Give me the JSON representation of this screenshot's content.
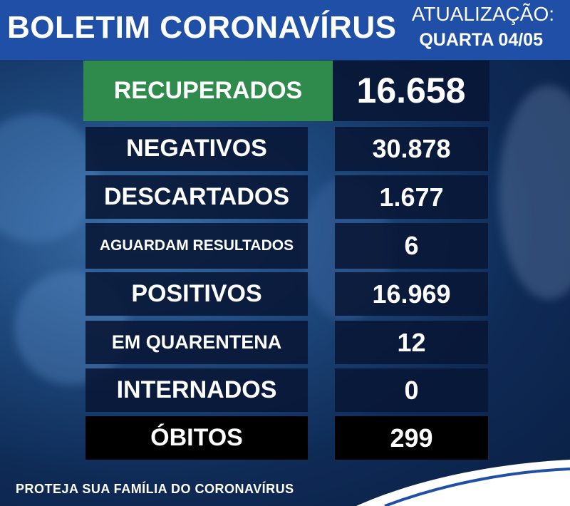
{
  "header": {
    "title": "BOLETIM CORONAVÍRUS",
    "update_label": "ATUALIZAÇÃO:",
    "update_date": "QUARTA 04/05"
  },
  "rows": [
    {
      "label": "RECUPERADOS",
      "value": "16.658"
    },
    {
      "label": "NEGATIVOS",
      "value": "30.878"
    },
    {
      "label": "DESCARTADOS",
      "value": "1.677"
    },
    {
      "label": "AGUARDAM RESULTADOS",
      "value": "6"
    },
    {
      "label": "POSITIVOS",
      "value": "16.969"
    },
    {
      "label": "EM QUARENTENA",
      "value": "12"
    },
    {
      "label": "INTERNADOS",
      "value": "0"
    },
    {
      "label": "ÓBITOS",
      "value": "299"
    }
  ],
  "footer": "PROTEJA SUA FAMÍLIA DO CORONAVÍRUS"
}
